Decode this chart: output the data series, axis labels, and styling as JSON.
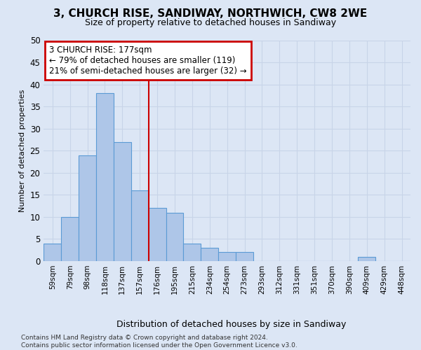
{
  "title": "3, CHURCH RISE, SANDIWAY, NORTHWICH, CW8 2WE",
  "subtitle": "Size of property relative to detached houses in Sandiway",
  "xlabel": "Distribution of detached houses by size in Sandiway",
  "ylabel": "Number of detached properties",
  "bar_labels": [
    "59sqm",
    "79sqm",
    "98sqm",
    "118sqm",
    "137sqm",
    "157sqm",
    "176sqm",
    "195sqm",
    "215sqm",
    "234sqm",
    "254sqm",
    "273sqm",
    "293sqm",
    "312sqm",
    "331sqm",
    "351sqm",
    "370sqm",
    "390sqm",
    "409sqm",
    "429sqm",
    "448sqm"
  ],
  "bar_values": [
    4,
    10,
    24,
    38,
    27,
    16,
    12,
    11,
    4,
    3,
    2,
    2,
    0,
    0,
    0,
    0,
    0,
    0,
    1,
    0,
    0
  ],
  "bar_color": "#aec6e8",
  "bar_edge_color": "#5b9bd5",
  "annotation_text_line1": "3 CHURCH RISE: 177sqm",
  "annotation_text_line2": "← 79% of detached houses are smaller (119)",
  "annotation_text_line3": "21% of semi-detached houses are larger (32) →",
  "annotation_box_color": "#ffffff",
  "annotation_box_edge_color": "#cc0000",
  "vline_color": "#cc0000",
  "grid_color": "#c8d4e8",
  "background_color": "#dce6f5",
  "ylim": [
    0,
    50
  ],
  "yticks": [
    0,
    5,
    10,
    15,
    20,
    25,
    30,
    35,
    40,
    45,
    50
  ],
  "vline_bar_index": 6,
  "footnote": "Contains HM Land Registry data © Crown copyright and database right 2024.\nContains public sector information licensed under the Open Government Licence v3.0."
}
